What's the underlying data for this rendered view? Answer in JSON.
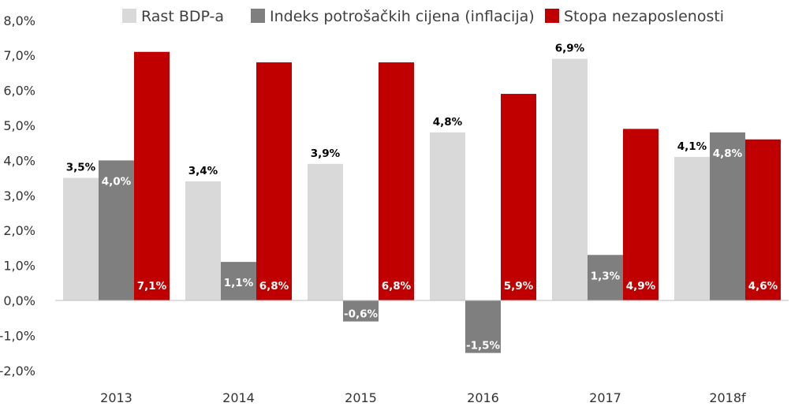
{
  "chart_data": {
    "type": "bar",
    "categories": [
      "2013",
      "2014",
      "2015",
      "2016",
      "2017",
      "2018f"
    ],
    "series": [
      {
        "name": "Rast BDP-a",
        "color": "#d9d9d9",
        "values": [
          3.5,
          3.4,
          3.9,
          4.8,
          6.9,
          4.1
        ],
        "labels": [
          "3,5%",
          "3,4%",
          "3,9%",
          "4,8%",
          "6,9%",
          "4,1%"
        ]
      },
      {
        "name": "Indeks potrošačkih cijena (inflacija)",
        "color": "#7f7f7f",
        "values": [
          4.0,
          1.1,
          -0.6,
          -1.5,
          1.3,
          4.8
        ],
        "labels": [
          "4,0%",
          "1,1%",
          "-0,6%",
          "-1,5%",
          "1,3%",
          "4,8%"
        ]
      },
      {
        "name": "Stopa nezaposlenosti",
        "color": "#c00000",
        "values": [
          7.1,
          6.8,
          6.8,
          5.9,
          4.9,
          4.6
        ],
        "labels": [
          "7,1%",
          "6,8%",
          "6,8%",
          "5,9%",
          "4,9%",
          "4,6%"
        ]
      }
    ],
    "yticks": [
      8,
      7,
      6,
      5,
      4,
      3,
      2,
      1,
      0,
      -1,
      -2
    ],
    "ytick_labels": [
      "8,0%",
      "7,0%",
      "6,0%",
      "5,0%",
      "4,0%",
      "3,0%",
      "2,0%",
      "1,0%",
      "0,0%",
      "-1,0%",
      "-2,0%"
    ],
    "ylim": [
      -2,
      8
    ],
    "legend_position": "top",
    "grid": false,
    "title": "",
    "xlabel": "",
    "ylabel": ""
  }
}
